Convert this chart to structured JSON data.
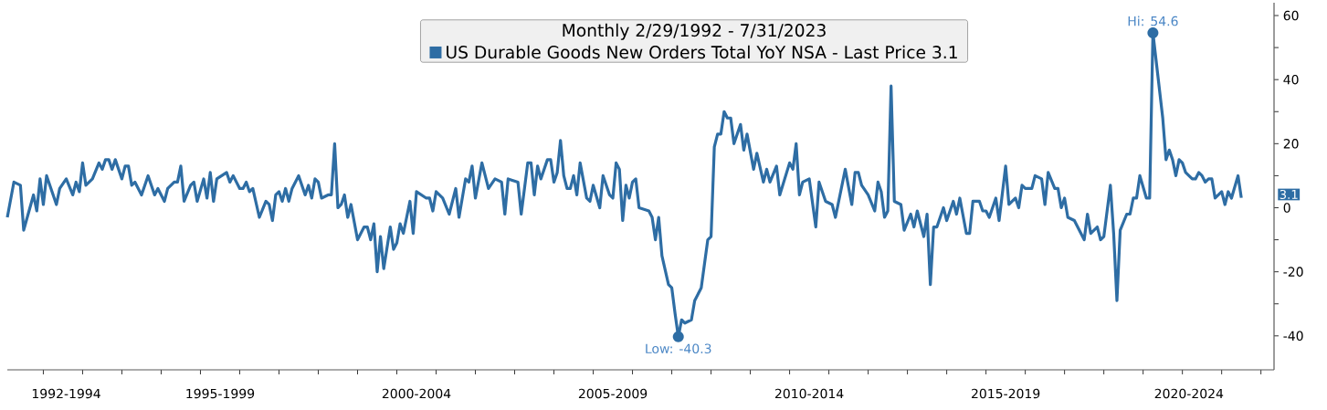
{
  "chart_data": {
    "type": "line",
    "legend_title": "Monthly 2/29/1992 - 7/31/2023",
    "legend": "top",
    "marker": "none",
    "line_style": "solid",
    "x": [
      "1992-02",
      "1992-04",
      "1992-06",
      "1992-07",
      "1992-10",
      "1992-11",
      "1992-12",
      "1993-01",
      "1993-02",
      "1993-05",
      "1993-06",
      "1993-08",
      "1993-10",
      "1993-11",
      "1993-12",
      "1994-01",
      "1994-02",
      "1994-04",
      "1994-06",
      "1994-07",
      "1994-08",
      "1994-09",
      "1994-10",
      "1994-11",
      "1995-01",
      "1995-02",
      "1995-03",
      "1995-04",
      "1995-05",
      "1995-07",
      "1995-09",
      "1995-11",
      "1995-12",
      "1996-02",
      "1996-03",
      "1996-05",
      "1996-06",
      "1996-07",
      "1996-08",
      "1996-10",
      "1996-11",
      "1996-12",
      "1997-02",
      "1997-03",
      "1997-04",
      "1997-05",
      "1997-06",
      "1997-09",
      "1997-10",
      "1997-11",
      "1998-01",
      "1998-02",
      "1998-03",
      "1998-04",
      "1998-05",
      "1998-07",
      "1998-09",
      "1998-10",
      "1998-11",
      "1998-12",
      "1999-01",
      "1999-02",
      "1999-03",
      "1999-04",
      "1999-05",
      "1999-07",
      "1999-09",
      "1999-10",
      "1999-11",
      "1999-12",
      "2000-01",
      "2000-02",
      "2000-04",
      "2000-05",
      "2000-06",
      "2000-07",
      "2000-08",
      "2000-09",
      "2000-10",
      "2000-11",
      "2001-01",
      "2001-03",
      "2001-04",
      "2001-05",
      "2001-06",
      "2001-07",
      "2001-08",
      "2001-09",
      "2001-11",
      "2001-12",
      "2002-01",
      "2002-02",
      "2002-03",
      "2002-05",
      "2002-06",
      "2002-07",
      "2002-10",
      "2002-11",
      "2002-12",
      "2003-01",
      "2003-03",
      "2003-05",
      "2003-07",
      "2003-08",
      "2003-10",
      "2003-11",
      "2003-12",
      "2004-01",
      "2004-03",
      "2004-05",
      "2004-07",
      "2004-09",
      "2004-10",
      "2004-11",
      "2005-02",
      "2005-03",
      "2005-05",
      "2005-06",
      "2005-07",
      "2005-08",
      "2005-09",
      "2005-11",
      "2005-12",
      "2006-01",
      "2006-02",
      "2006-03",
      "2006-04",
      "2006-05",
      "2006-06",
      "2006-07",
      "2006-08",
      "2006-09",
      "2006-11",
      "2006-12",
      "2007-01",
      "2007-03",
      "2007-04",
      "2007-06",
      "2007-07",
      "2007-08",
      "2007-09",
      "2007-10",
      "2007-11",
      "2007-12",
      "2008-01",
      "2008-02",
      "2008-03",
      "2008-06",
      "2008-07",
      "2008-08",
      "2008-09",
      "2008-10",
      "2008-12",
      "2009-01",
      "2009-02",
      "2009-03",
      "2009-04",
      "2009-05",
      "2009-07",
      "2009-08",
      "2009-10",
      "2009-12",
      "2010-01",
      "2010-02",
      "2010-03",
      "2010-04",
      "2010-05",
      "2010-06",
      "2010-07",
      "2010-08",
      "2010-10",
      "2010-11",
      "2010-12",
      "2011-02",
      "2011-03",
      "2011-05",
      "2011-06",
      "2011-07",
      "2011-09",
      "2011-10",
      "2012-01",
      "2012-02",
      "2012-03",
      "2012-04",
      "2012-05",
      "2012-07",
      "2012-09",
      "2012-10",
      "2012-12",
      "2013-02",
      "2013-03",
      "2013-06",
      "2013-08",
      "2013-09",
      "2013-10",
      "2013-11",
      "2014-01",
      "2014-03",
      "2014-04",
      "2014-05",
      "2014-06",
      "2014-07",
      "2014-08",
      "2014-09",
      "2014-11",
      "2014-12",
      "2015-02",
      "2015-03",
      "2015-04",
      "2015-06",
      "2015-07",
      "2015-08",
      "2015-09",
      "2015-10",
      "2015-12",
      "2016-01",
      "2016-03",
      "2016-04",
      "2016-05",
      "2016-07",
      "2016-08",
      "2016-09",
      "2016-11",
      "2016-12",
      "2017-01",
      "2017-02",
      "2017-04",
      "2017-05",
      "2017-07",
      "2017-08",
      "2017-10",
      "2017-11",
      "2017-12",
      "2018-01",
      "2018-03",
      "2018-04",
      "2018-06",
      "2018-07",
      "2018-08",
      "2018-10",
      "2018-11",
      "2018-12",
      "2019-01",
      "2019-02",
      "2019-04",
      "2019-05",
      "2019-07",
      "2019-08",
      "2019-09",
      "2019-11",
      "2019-12",
      "2020-01",
      "2020-03",
      "2020-04",
      "2020-05",
      "2020-06",
      "2020-08",
      "2020-09",
      "2020-10",
      "2020-11",
      "2020-12",
      "2021-02",
      "2021-03",
      "2021-04",
      "2021-07",
      "2021-08",
      "2021-09",
      "2021-10",
      "2021-11",
      "2021-12",
      "2022-01",
      "2022-02",
      "2022-04",
      "2022-05",
      "2022-06",
      "2022-07",
      "2022-08",
      "2022-09",
      "2022-10",
      "2022-11",
      "2023-01",
      "2023-02",
      "2023-03",
      "2023-04",
      "2023-06",
      "2023-07"
    ],
    "series": [
      {
        "name": "US Durable Goods New Orders Total YoY NSA - Last Price 3.1",
        "color": "#2e6da4",
        "values": [
          -3,
          8,
          7,
          -7,
          4,
          -1,
          9,
          1,
          10,
          1,
          6,
          9,
          4,
          8,
          5,
          14,
          7,
          9,
          14,
          12,
          15,
          15,
          12,
          15,
          9,
          13,
          13,
          7,
          8,
          4,
          10,
          4,
          6,
          2,
          6,
          8,
          8,
          13,
          2,
          7,
          8,
          2,
          9,
          3,
          11,
          2,
          9,
          11,
          8,
          10,
          6,
          6,
          8,
          5,
          6,
          -3,
          2,
          1,
          -4,
          4,
          5,
          2,
          6,
          2,
          6,
          10,
          4,
          7,
          3,
          9,
          8,
          3,
          4,
          4,
          20,
          0,
          1,
          4,
          -3,
          1,
          -10,
          -6,
          -6,
          -10,
          -5,
          -20,
          -9,
          -19,
          -6,
          -13,
          -11,
          -5,
          -8,
          2,
          -8,
          5,
          3,
          3,
          -1,
          5,
          3,
          -2,
          6,
          -3,
          9,
          8,
          13,
          3,
          14,
          6,
          9,
          8,
          -2,
          9,
          8,
          -2,
          14,
          14,
          4,
          13,
          9,
          15,
          15,
          8,
          11,
          21,
          10,
          6,
          6,
          10,
          4,
          14,
          3,
          2,
          7,
          0,
          10,
          4,
          3,
          14,
          12,
          -4,
          7,
          3,
          8,
          9,
          0,
          -1,
          -3,
          -10,
          -3,
          -15,
          -24,
          -25,
          -33,
          -40.3,
          -35,
          -36,
          -35,
          -29,
          -25,
          -10,
          -9,
          19,
          23,
          23,
          30,
          28,
          28,
          20,
          26,
          18,
          23,
          12,
          17,
          8,
          12,
          8,
          13,
          4,
          14,
          12,
          20,
          4,
          8,
          9,
          -6,
          8,
          2,
          1,
          -3,
          12,
          1,
          11,
          11,
          7,
          4,
          -1,
          8,
          5,
          -3,
          -1,
          38,
          2,
          1,
          -7,
          -2,
          -6,
          -1,
          -9,
          -2,
          -24,
          -6,
          -6,
          0,
          -4,
          2,
          -2,
          3,
          -8,
          -8,
          2,
          2,
          -1,
          -1,
          -3,
          3,
          -4,
          13,
          1,
          3,
          0,
          7,
          6,
          6,
          10,
          9,
          1,
          11,
          6,
          6,
          0,
          3,
          -3,
          -4,
          -6,
          -10,
          -2,
          -8,
          -6,
          -10,
          -9,
          7,
          -8,
          -29,
          -7,
          -2,
          -2,
          3,
          3,
          10,
          3,
          3,
          54.6,
          28,
          15,
          18,
          15,
          10,
          15,
          14,
          11,
          9,
          9,
          11,
          10,
          8,
          9,
          9,
          3,
          5,
          1,
          5,
          3,
          10,
          3.1
        ]
      }
    ],
    "xlim": [
      "1992-02",
      "2024-05"
    ],
    "xticks": [
      {
        "value": "1993-01",
        "label": null
      },
      {
        "value": "1994-01",
        "label": null
      },
      {
        "value": "1995-01",
        "label": null
      },
      {
        "value": "1996-01",
        "label": null
      },
      {
        "value": "1997-01",
        "label": null
      },
      {
        "value": "1998-01",
        "label": null
      },
      {
        "value": "1999-01",
        "label": null
      },
      {
        "value": "2000-01",
        "label": null
      },
      {
        "value": "2001-01",
        "label": null
      },
      {
        "value": "2002-01",
        "label": null
      },
      {
        "value": "2003-01",
        "label": null
      },
      {
        "value": "2004-01",
        "label": null
      },
      {
        "value": "2005-01",
        "label": null
      },
      {
        "value": "2006-01",
        "label": null
      },
      {
        "value": "2007-01",
        "label": null
      },
      {
        "value": "2008-01",
        "label": null
      },
      {
        "value": "2009-01",
        "label": null
      },
      {
        "value": "2010-01",
        "label": null
      },
      {
        "value": "2011-01",
        "label": null
      },
      {
        "value": "2012-01",
        "label": null
      },
      {
        "value": "2013-01",
        "label": null
      },
      {
        "value": "2014-01",
        "label": null
      },
      {
        "value": "2015-01",
        "label": null
      },
      {
        "value": "2016-01",
        "label": null
      },
      {
        "value": "2017-01",
        "label": null
      },
      {
        "value": "2018-01",
        "label": null
      },
      {
        "value": "2019-01",
        "label": null
      },
      {
        "value": "2020-01",
        "label": null
      },
      {
        "value": "2021-01",
        "label": null
      },
      {
        "value": "2022-01",
        "label": null
      },
      {
        "value": "2023-01",
        "label": null
      },
      {
        "value": "2024-01",
        "label": null
      },
      {
        "value": "1993-08",
        "label": "1992-1994"
      },
      {
        "value": "1997-07",
        "label": "1995-1999"
      },
      {
        "value": "2002-07",
        "label": "2000-2004"
      },
      {
        "value": "2007-07",
        "label": "2005-2009"
      },
      {
        "value": "2012-07",
        "label": "2010-2014"
      },
      {
        "value": "2017-07",
        "label": "2015-2019"
      },
      {
        "value": "2022-03",
        "label": "2020-2024"
      }
    ],
    "ylim": [
      -50.6,
      64
    ],
    "yticks": [
      -40,
      {
        "value": -30,
        "label": null
      },
      -20,
      {
        "value": -10,
        "label": null
      },
      0,
      {
        "value": 10,
        "label": null
      },
      20,
      {
        "value": 30,
        "label": null
      },
      40,
      {
        "value": 50,
        "label": null
      },
      60
    ],
    "annotations": [
      {
        "text": "Hi: 54.6",
        "x": "2021-04",
        "y": 54.6
      },
      {
        "text": "Low: -40.3",
        "x": "2009-03",
        "y": -40.3
      },
      "3.1"
    ]
  }
}
